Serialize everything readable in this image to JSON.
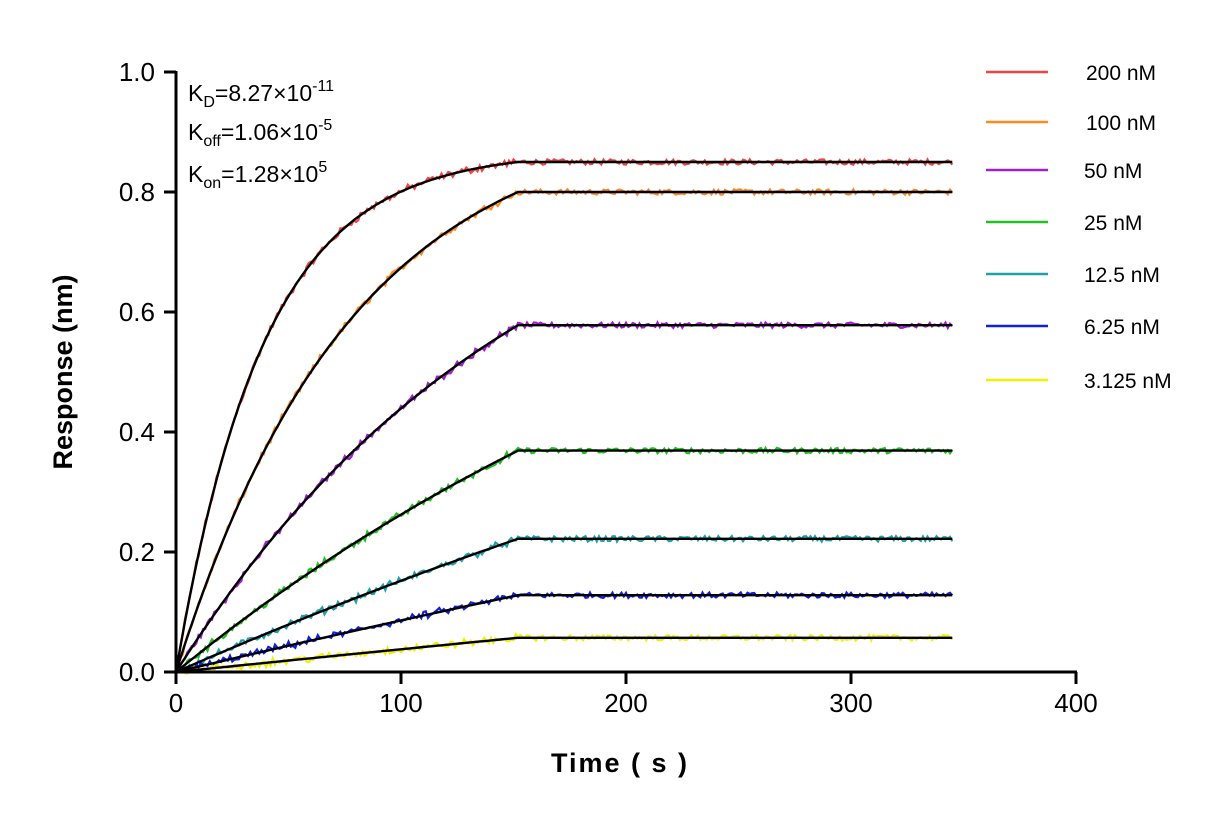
{
  "chart_data": {
    "type": "line",
    "xlabel": "Time ( s )",
    "ylabel": "Response (nm)",
    "xlim": [
      0,
      400
    ],
    "ylim": [
      0,
      1.0
    ],
    "x_ticks": [
      "0",
      "100",
      "200",
      "300",
      "400"
    ],
    "y_ticks": [
      "0.0",
      "0.2",
      "0.4",
      "0.6",
      "0.8",
      "1.0"
    ],
    "grid": false,
    "legend_position": "top-right",
    "association_end": 152,
    "dissociation_end": 345,
    "annotations": {
      "kd": {
        "label": "K",
        "sub": "D",
        "value": "=8.27×10",
        "exp": "-11"
      },
      "koff": {
        "label": "K",
        "sub": "off",
        "value": "=1.06×10",
        "exp": "-5"
      },
      "kon": {
        "label": "K",
        "sub": "on",
        "value": "=1.28×10",
        "exp": "5"
      }
    },
    "fit_color": "#000000",
    "series": [
      {
        "name": "200 nM",
        "conc_nM": 200,
        "plateau": 0.85,
        "color": "#ee4444"
      },
      {
        "name": "100 nM",
        "conc_nM": 100,
        "plateau": 0.8,
        "color": "#ff8a20"
      },
      {
        "name": "50 nM",
        "conc_nM": 50,
        "plateau": 0.578,
        "color": "#a020d0"
      },
      {
        "name": "25 nM",
        "conc_nM": 25,
        "plateau": 0.369,
        "color": "#22c022"
      },
      {
        "name": "12.5 nM",
        "conc_nM": 12.5,
        "plateau": 0.222,
        "color": "#20a0a8"
      },
      {
        "name": "6.25 nM",
        "conc_nM": 6.25,
        "plateau": 0.128,
        "color": "#1020e0"
      },
      {
        "name": "3.125 nM",
        "conc_nM": 3.125,
        "plateau": 0.057,
        "color": "#f0f000"
      }
    ]
  }
}
